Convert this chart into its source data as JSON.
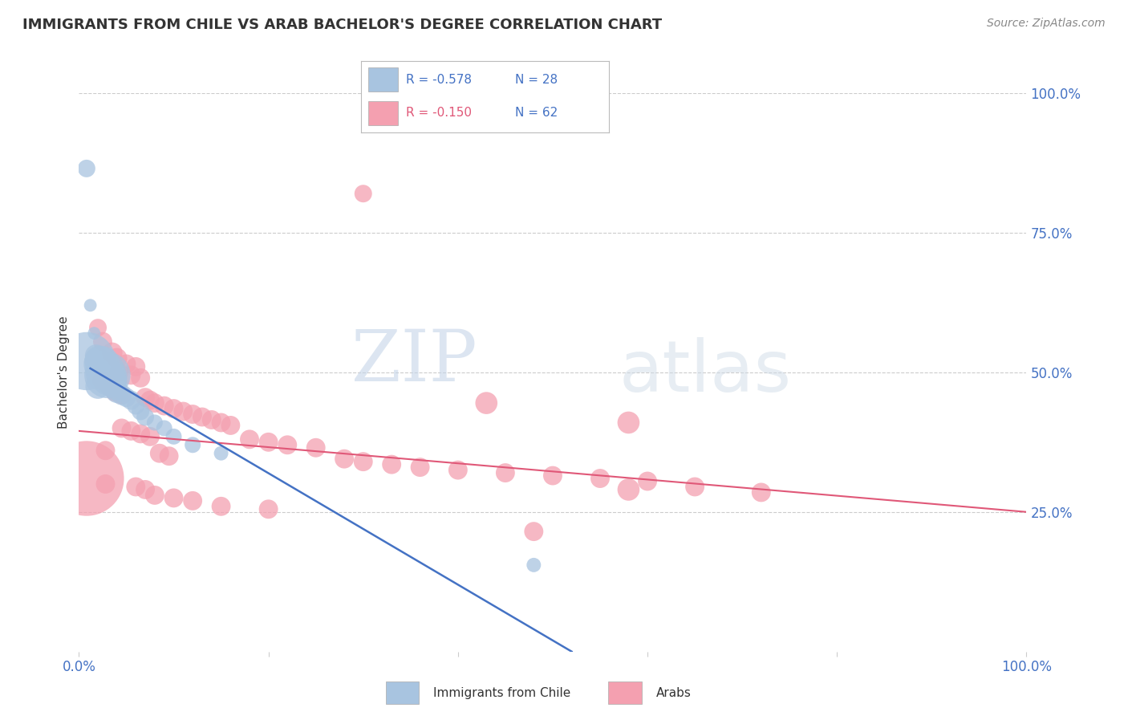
{
  "title": "IMMIGRANTS FROM CHILE VS ARAB BACHELOR'S DEGREE CORRELATION CHART",
  "source": "Source: ZipAtlas.com",
  "ylabel": "Bachelor's Degree",
  "legend_label1": "Immigrants from Chile",
  "legend_label2": "Arabs",
  "r1": "-0.578",
  "n1": "28",
  "r2": "-0.150",
  "n2": "62",
  "color_chile": "#a8c4e0",
  "color_arab": "#f4a0b0",
  "color_chile_line": "#4472c4",
  "color_arab_line": "#e05878",
  "color_axis_label": "#4472c4",
  "watermark_zip": "ZIP",
  "watermark_atlas": "atlas",
  "grid_color": "#cccccc",
  "background_color": "#ffffff",
  "chile_points": [
    [
      0.008,
      0.865,
      9
    ],
    [
      0.012,
      0.62,
      6
    ],
    [
      0.016,
      0.57,
      6
    ],
    [
      0.008,
      0.52,
      40
    ],
    [
      0.018,
      0.53,
      12
    ],
    [
      0.022,
      0.52,
      18
    ],
    [
      0.024,
      0.515,
      22
    ],
    [
      0.026,
      0.505,
      18
    ],
    [
      0.028,
      0.5,
      25
    ],
    [
      0.03,
      0.495,
      30
    ],
    [
      0.032,
      0.49,
      22
    ],
    [
      0.034,
      0.485,
      18
    ],
    [
      0.036,
      0.48,
      16
    ],
    [
      0.02,
      0.475,
      14
    ],
    [
      0.038,
      0.47,
      12
    ],
    [
      0.04,
      0.465,
      12
    ],
    [
      0.045,
      0.46,
      11
    ],
    [
      0.05,
      0.455,
      10
    ],
    [
      0.055,
      0.45,
      10
    ],
    [
      0.06,
      0.44,
      9
    ],
    [
      0.065,
      0.43,
      9
    ],
    [
      0.07,
      0.42,
      9
    ],
    [
      0.08,
      0.41,
      8
    ],
    [
      0.09,
      0.4,
      8
    ],
    [
      0.1,
      0.385,
      8
    ],
    [
      0.12,
      0.37,
      8
    ],
    [
      0.15,
      0.355,
      7
    ],
    [
      0.48,
      0.155,
      7
    ]
  ],
  "arab_points": [
    [
      0.3,
      0.82,
      9
    ],
    [
      0.02,
      0.58,
      9
    ],
    [
      0.025,
      0.555,
      10
    ],
    [
      0.035,
      0.535,
      11
    ],
    [
      0.04,
      0.525,
      11
    ],
    [
      0.05,
      0.515,
      10
    ],
    [
      0.06,
      0.51,
      10
    ],
    [
      0.042,
      0.5,
      10
    ],
    [
      0.055,
      0.495,
      10
    ],
    [
      0.065,
      0.49,
      10
    ],
    [
      0.024,
      0.485,
      10
    ],
    [
      0.03,
      0.48,
      10
    ],
    [
      0.032,
      0.475,
      10
    ],
    [
      0.036,
      0.47,
      10
    ],
    [
      0.038,
      0.465,
      10
    ],
    [
      0.045,
      0.46,
      10
    ],
    [
      0.07,
      0.455,
      10
    ],
    [
      0.075,
      0.45,
      10
    ],
    [
      0.08,
      0.445,
      10
    ],
    [
      0.09,
      0.44,
      10
    ],
    [
      0.1,
      0.435,
      10
    ],
    [
      0.11,
      0.43,
      10
    ],
    [
      0.12,
      0.425,
      10
    ],
    [
      0.13,
      0.42,
      10
    ],
    [
      0.14,
      0.415,
      10
    ],
    [
      0.15,
      0.41,
      10
    ],
    [
      0.16,
      0.405,
      10
    ],
    [
      0.045,
      0.4,
      10
    ],
    [
      0.055,
      0.395,
      10
    ],
    [
      0.065,
      0.39,
      10
    ],
    [
      0.075,
      0.385,
      10
    ],
    [
      0.18,
      0.38,
      10
    ],
    [
      0.2,
      0.375,
      10
    ],
    [
      0.22,
      0.37,
      10
    ],
    [
      0.25,
      0.365,
      10
    ],
    [
      0.028,
      0.36,
      10
    ],
    [
      0.085,
      0.355,
      10
    ],
    [
      0.095,
      0.35,
      10
    ],
    [
      0.28,
      0.345,
      10
    ],
    [
      0.3,
      0.34,
      10
    ],
    [
      0.33,
      0.335,
      10
    ],
    [
      0.36,
      0.33,
      10
    ],
    [
      0.4,
      0.325,
      10
    ],
    [
      0.45,
      0.32,
      10
    ],
    [
      0.5,
      0.315,
      10
    ],
    [
      0.55,
      0.31,
      10
    ],
    [
      0.6,
      0.305,
      10
    ],
    [
      0.65,
      0.295,
      10
    ],
    [
      0.72,
      0.285,
      10
    ],
    [
      0.028,
      0.3,
      10
    ],
    [
      0.06,
      0.295,
      10
    ],
    [
      0.07,
      0.29,
      10
    ],
    [
      0.08,
      0.28,
      10
    ],
    [
      0.1,
      0.275,
      10
    ],
    [
      0.12,
      0.27,
      10
    ],
    [
      0.15,
      0.26,
      10
    ],
    [
      0.2,
      0.255,
      10
    ],
    [
      0.008,
      0.31,
      55
    ],
    [
      0.43,
      0.445,
      12
    ],
    [
      0.58,
      0.41,
      12
    ],
    [
      0.58,
      0.29,
      12
    ],
    [
      0.48,
      0.215,
      10
    ]
  ]
}
